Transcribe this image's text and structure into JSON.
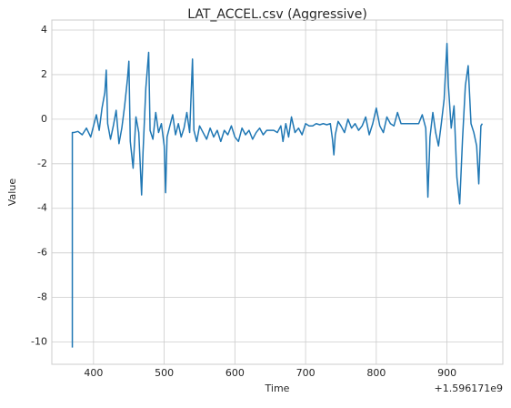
{
  "chart_data": {
    "type": "line",
    "title": "LAT_ACCEL.csv (Aggressive)",
    "x_label": "Time",
    "y_label": "Value",
    "x_offset_text": "+1.596171e9",
    "x": [
      370,
      370,
      372,
      378,
      384,
      390,
      396,
      400,
      404,
      408,
      412,
      416,
      418,
      420,
      424,
      428,
      432,
      436,
      440,
      444,
      448,
      450,
      452,
      456,
      460,
      464,
      468,
      470,
      474,
      478,
      480,
      484,
      488,
      492,
      496,
      500,
      502,
      504,
      508,
      512,
      516,
      520,
      524,
      528,
      532,
      536,
      540,
      542,
      546,
      550,
      555,
      560,
      565,
      570,
      575,
      580,
      585,
      590,
      595,
      600,
      605,
      610,
      615,
      620,
      625,
      630,
      635,
      640,
      645,
      650,
      655,
      660,
      665,
      668,
      672,
      676,
      680,
      685,
      690,
      695,
      700,
      705,
      710,
      715,
      720,
      725,
      730,
      735,
      738,
      740,
      742,
      746,
      750,
      755,
      760,
      765,
      770,
      775,
      780,
      785,
      790,
      795,
      800,
      805,
      810,
      815,
      820,
      825,
      830,
      835,
      840,
      845,
      850,
      855,
      860,
      865,
      870,
      873,
      876,
      880,
      884,
      888,
      892,
      896,
      900,
      902,
      906,
      910,
      914,
      918,
      922,
      926,
      930,
      934,
      938,
      942,
      945,
      948,
      950
    ],
    "series": [
      {
        "name": "Value",
        "color": "#1f77b4",
        "values": [
          -10.25,
          -0.6,
          -0.6,
          -0.55,
          -0.7,
          -0.4,
          -0.8,
          -0.3,
          0.2,
          -0.5,
          0.5,
          1.2,
          2.2,
          -0.2,
          -0.9,
          -0.3,
          0.4,
          -1.1,
          -0.4,
          0.6,
          1.8,
          2.6,
          -1.0,
          -2.2,
          0.1,
          -0.6,
          -3.4,
          -1.5,
          1.4,
          3.0,
          -0.5,
          -0.9,
          0.3,
          -0.6,
          -0.2,
          -1.2,
          -3.3,
          -0.8,
          -0.3,
          0.2,
          -0.7,
          -0.2,
          -0.8,
          -0.4,
          0.3,
          -0.6,
          2.7,
          -0.5,
          -1.0,
          -0.3,
          -0.6,
          -0.9,
          -0.4,
          -0.8,
          -0.5,
          -1.0,
          -0.5,
          -0.7,
          -0.3,
          -0.8,
          -1.0,
          -0.4,
          -0.7,
          -0.5,
          -0.9,
          -0.6,
          -0.4,
          -0.7,
          -0.5,
          -0.5,
          -0.5,
          -0.6,
          -0.3,
          -1.0,
          -0.2,
          -0.8,
          0.1,
          -0.6,
          -0.4,
          -0.7,
          -0.2,
          -0.3,
          -0.3,
          -0.2,
          -0.25,
          -0.2,
          -0.25,
          -0.2,
          -0.9,
          -1.6,
          -0.7,
          -0.1,
          -0.3,
          -0.6,
          0.0,
          -0.4,
          -0.2,
          -0.5,
          -0.3,
          0.1,
          -0.7,
          -0.2,
          0.5,
          -0.3,
          -0.6,
          0.1,
          -0.2,
          -0.3,
          0.3,
          -0.2,
          -0.2,
          -0.2,
          -0.2,
          -0.2,
          -0.2,
          0.2,
          -0.4,
          -3.5,
          -0.8,
          0.3,
          -0.6,
          -1.2,
          -0.2,
          0.9,
          3.4,
          1.5,
          -0.4,
          0.6,
          -2.6,
          -3.8,
          -0.9,
          1.5,
          2.4,
          -0.2,
          -0.6,
          -1.2,
          -2.9,
          -0.3,
          -0.2
        ]
      }
    ],
    "xlim": [
      341,
      979
    ],
    "ylim": [
      -11.0,
      4.45
    ],
    "xticks": [
      400,
      500,
      600,
      700,
      800,
      900
    ],
    "yticks": [
      -10,
      -8,
      -6,
      -4,
      -2,
      0,
      2,
      4
    ],
    "grid": true
  }
}
